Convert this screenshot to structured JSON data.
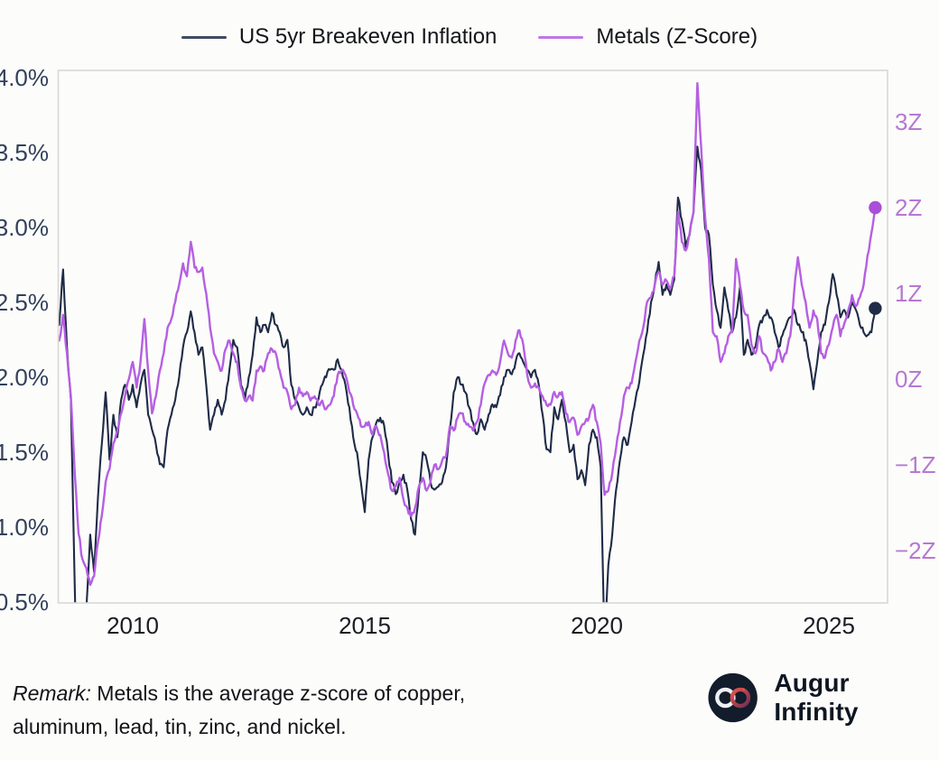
{
  "footer": {
    "remark_label": "Remark:",
    "remark_text": " Metals is the average z-score of copper, aluminum, lead, tin, zinc, and nickel.",
    "brand": "Augur Infinity"
  },
  "colors": {
    "background": "#fcfcfa",
    "frame": "#d8d8d6",
    "axis_left": "#32405c",
    "axis_right": "#b678d3",
    "axis_x": "#1a1d24",
    "legend_text": "#14161a"
  },
  "chart_data": {
    "type": "line",
    "title": "",
    "grid": false,
    "legend_position": "top-center",
    "x_unit": "year",
    "x_start": 2008.4167,
    "x_step_years": 0.083333,
    "x_end": 2026.0,
    "x_axis": {
      "ticks": [
        2010,
        2015,
        2020,
        2025
      ],
      "labels": [
        "2010",
        "2015",
        "2020",
        "2025"
      ],
      "range": [
        2008.38,
        2026.26
      ]
    },
    "y_left": {
      "name": "US 5yr breakeven inflation",
      "ticks": [
        4.0,
        3.5,
        3.0,
        2.5,
        2.0,
        1.5,
        1.0,
        0.5
      ],
      "labels": [
        "4.0%",
        "3.5%",
        "3.0%",
        "2.5%",
        "2.0%",
        "1.5%",
        "1.0%",
        "0.5%"
      ],
      "range": [
        0.5,
        4.0
      ]
    },
    "y_right": {
      "name": "Metals z-score",
      "ticks": [
        3,
        2,
        1,
        0,
        -1,
        -2
      ],
      "labels": [
        "3Z",
        "2Z",
        "1Z",
        "0Z",
        "−1Z",
        "−2Z"
      ],
      "range": [
        -2.5,
        3.5
      ]
    },
    "series": [
      {
        "id": "breakeven",
        "name": "US 5yr Breakeven Inflation",
        "axis": "left",
        "color": "#1f2b47",
        "dot_color": "#1f2b47",
        "width": 2.1,
        "end_dot": true,
        "end_value": 2.46,
        "values": [
          2.35,
          2.72,
          2.2,
          1.85,
          0.6,
          -0.5,
          0.0,
          0.45,
          0.95,
          0.7,
          1.2,
          1.55,
          1.9,
          1.45,
          1.75,
          1.6,
          1.85,
          1.95,
          1.85,
          1.95,
          1.8,
          1.95,
          2.05,
          1.75,
          1.65,
          1.55,
          1.42,
          1.4,
          1.65,
          1.75,
          1.85,
          2.0,
          2.2,
          2.3,
          2.44,
          2.3,
          2.15,
          2.2,
          1.95,
          1.65,
          1.75,
          1.85,
          1.75,
          1.85,
          2.05,
          2.25,
          2.2,
          1.95,
          1.85,
          2.0,
          2.15,
          2.4,
          2.3,
          2.35,
          2.3,
          2.43,
          2.35,
          2.3,
          2.2,
          2.25,
          1.95,
          1.85,
          1.8,
          1.75,
          1.8,
          1.75,
          1.8,
          1.85,
          1.95,
          2.0,
          2.05,
          2.05,
          2.12,
          2.05,
          1.95,
          1.8,
          1.6,
          1.5,
          1.3,
          1.1,
          1.45,
          1.6,
          1.7,
          1.73,
          1.68,
          1.5,
          1.3,
          1.22,
          1.3,
          1.35,
          1.25,
          1.05,
          0.95,
          1.25,
          1.5,
          1.45,
          1.3,
          1.25,
          1.27,
          1.3,
          1.4,
          1.65,
          1.9,
          2.0,
          1.95,
          1.9,
          1.8,
          1.7,
          1.62,
          1.72,
          1.65,
          1.75,
          1.82,
          1.8,
          1.88,
          2.0,
          2.05,
          2.02,
          2.1,
          2.16,
          2.1,
          2.05,
          2.0,
          2.05,
          1.95,
          1.75,
          1.52,
          1.5,
          1.8,
          1.72,
          1.85,
          1.7,
          1.5,
          1.55,
          1.32,
          1.38,
          1.28,
          1.55,
          1.65,
          1.6,
          1.4,
          0.2,
          0.75,
          0.95,
          1.25,
          1.45,
          1.6,
          1.55,
          1.7,
          1.85,
          1.97,
          2.15,
          2.3,
          2.5,
          2.62,
          2.77,
          2.55,
          2.62,
          2.55,
          2.65,
          3.2,
          3.05,
          2.87,
          2.95,
          3.1,
          3.54,
          3.38,
          3.0,
          2.95,
          2.62,
          2.45,
          2.33,
          2.6,
          2.45,
          2.3,
          2.4,
          2.6,
          2.15,
          2.25,
          2.15,
          2.2,
          2.35,
          2.4,
          2.45,
          2.4,
          2.3,
          2.2,
          2.28,
          2.35,
          2.4,
          2.45,
          2.35,
          2.3,
          2.25,
          2.1,
          1.92,
          2.1,
          2.3,
          2.35,
          2.5,
          2.69,
          2.55,
          2.4,
          2.45,
          2.4,
          2.5,
          2.45,
          2.35,
          2.3,
          2.28,
          2.3,
          2.46
        ]
      },
      {
        "id": "metals",
        "name": "Metals (Z-Score)",
        "axis": "right",
        "color": "#b55fe3",
        "dot_color": "#a94fd8",
        "width": 2.4,
        "end_dot": true,
        "end_value": 2.0,
        "values": [
          0.45,
          0.75,
          0.3,
          -0.2,
          -1.1,
          -1.8,
          -2.1,
          -2.2,
          -2.4,
          -2.3,
          -1.9,
          -1.6,
          -1.2,
          -1.05,
          -0.75,
          -0.6,
          -0.4,
          -0.2,
          0.0,
          0.2,
          -0.1,
          0.2,
          0.7,
          0.1,
          -0.4,
          -0.2,
          0.1,
          0.3,
          0.6,
          0.7,
          0.9,
          1.1,
          1.35,
          1.2,
          1.6,
          1.3,
          1.25,
          1.3,
          1.0,
          0.6,
          0.3,
          0.2,
          0.1,
          0.35,
          0.45,
          0.3,
          0.2,
          -0.1,
          -0.25,
          -0.2,
          -0.25,
          0.1,
          0.15,
          0.1,
          0.3,
          0.35,
          0.3,
          0.1,
          -0.1,
          -0.15,
          -0.35,
          -0.3,
          -0.1,
          -0.2,
          -0.15,
          -0.25,
          -0.2,
          -0.3,
          -0.25,
          -0.35,
          -0.3,
          -0.2,
          0.05,
          0.1,
          0.05,
          -0.15,
          -0.3,
          -0.4,
          -0.55,
          -0.55,
          -0.5,
          -0.65,
          -0.55,
          -0.65,
          -0.85,
          -1.1,
          -1.3,
          -1.25,
          -1.15,
          -1.4,
          -1.5,
          -1.6,
          -1.5,
          -1.25,
          -1.15,
          -1.3,
          -1.2,
          -1.0,
          -1.05,
          -0.95,
          -0.9,
          -0.55,
          -0.6,
          -0.45,
          -0.4,
          -0.5,
          -0.55,
          -0.6,
          -0.5,
          -0.3,
          -0.05,
          0.05,
          0.1,
          0.05,
          0.2,
          0.45,
          0.3,
          0.25,
          0.45,
          0.57,
          0.4,
          0.05,
          -0.1,
          -0.05,
          -0.1,
          -0.2,
          -0.3,
          -0.3,
          -0.15,
          -0.2,
          -0.15,
          -0.4,
          -0.5,
          -0.45,
          -0.65,
          -0.55,
          -0.5,
          -0.45,
          -0.3,
          -0.5,
          -0.75,
          -1.35,
          -1.3,
          -1.1,
          -0.8,
          -0.5,
          -0.2,
          -0.1,
          -0.05,
          0.2,
          0.45,
          0.6,
          0.9,
          0.95,
          1.1,
          1.25,
          1.1,
          1.15,
          1.05,
          1.2,
          1.95,
          1.6,
          1.5,
          1.7,
          1.95,
          3.45,
          2.7,
          1.9,
          1.4,
          0.55,
          0.5,
          0.2,
          0.3,
          0.5,
          0.55,
          1.4,
          1.1,
          0.8,
          0.75,
          0.4,
          0.3,
          0.5,
          0.3,
          0.25,
          0.1,
          0.2,
          0.35,
          0.2,
          0.3,
          0.5,
          1.0,
          1.42,
          1.1,
          0.9,
          0.6,
          0.8,
          0.7,
          0.3,
          0.25,
          0.4,
          0.6,
          0.75,
          0.5,
          0.65,
          0.8,
          0.98,
          0.85,
          0.95,
          1.1,
          1.44,
          1.7,
          2.0
        ]
      }
    ]
  }
}
